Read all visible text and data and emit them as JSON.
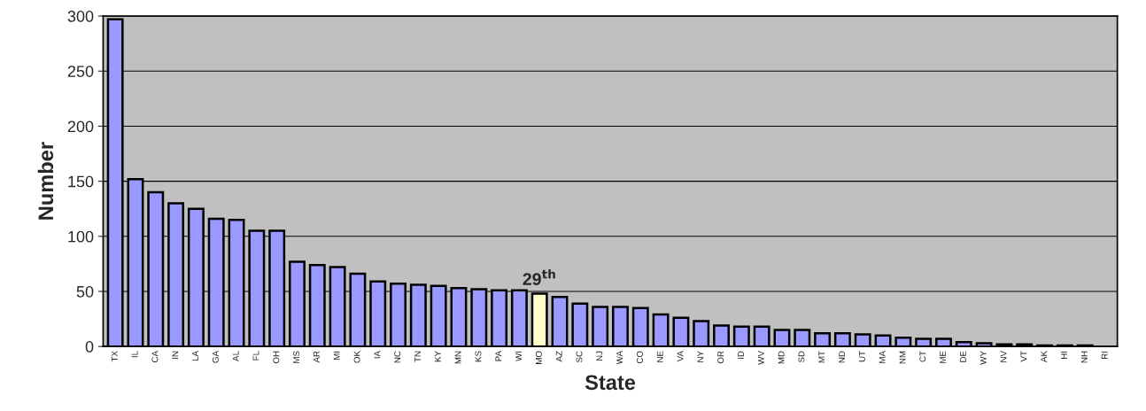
{
  "chart_data": {
    "type": "bar",
    "xlabel": "State",
    "ylabel": "Number",
    "categories": [
      "TX",
      "IL",
      "CA",
      "IN",
      "LA",
      "GA",
      "AL",
      "FL",
      "OH",
      "MS",
      "AR",
      "MI",
      "OK",
      "IA",
      "NC",
      "TN",
      "KY",
      "MN",
      "KS",
      "PA",
      "WI",
      "MO",
      "AZ",
      "SC",
      "NJ",
      "WA",
      "CO",
      "NE",
      "VA",
      "NY",
      "OR",
      "ID",
      "WV",
      "MD",
      "SD",
      "MT",
      "ND",
      "UT",
      "MA",
      "NM",
      "CT",
      "ME",
      "DE",
      "WY",
      "NV",
      "VT",
      "AK",
      "HI",
      "NH",
      "RI"
    ],
    "values": [
      297,
      152,
      140,
      130,
      125,
      116,
      115,
      105,
      105,
      77,
      74,
      72,
      66,
      59,
      57,
      56,
      55,
      53,
      52,
      51,
      51,
      48,
      45,
      39,
      36,
      36,
      35,
      29,
      26,
      23,
      19,
      18,
      18,
      15,
      15,
      12,
      12,
      11,
      10,
      8,
      7,
      7,
      4,
      3,
      2,
      2,
      1,
      1,
      1,
      0
    ],
    "colors": [
      "#9999ff",
      "#9999ff",
      "#9999ff",
      "#9999ff",
      "#9999ff",
      "#9999ff",
      "#9999ff",
      "#9999ff",
      "#9999ff",
      "#9999ff",
      "#9999ff",
      "#9999ff",
      "#9999ff",
      "#9999ff",
      "#9999ff",
      "#9999ff",
      "#9999ff",
      "#9999ff",
      "#9999ff",
      "#9999ff",
      "#9999ff",
      "#ffffcc",
      "#9999ff",
      "#9999ff",
      "#9999ff",
      "#9999ff",
      "#9999ff",
      "#9999ff",
      "#9999ff",
      "#9999ff",
      "#9999ff",
      "#9999ff",
      "#9999ff",
      "#9999ff",
      "#9999ff",
      "#9999ff",
      "#9999ff",
      "#9999ff",
      "#9999ff",
      "#9999ff",
      "#9999ff",
      "#9999ff",
      "#9999ff",
      "#9999ff",
      "#9999ff",
      "#9999ff",
      "#9999ff",
      "#9999ff",
      "#9999ff",
      "#9999ff"
    ],
    "ylim": [
      0,
      300
    ],
    "yticks": [
      0,
      50,
      100,
      150,
      200,
      250,
      300
    ],
    "grid": "y",
    "legend": false,
    "annotations": [
      {
        "text": "29$^{th}$",
        "x": "MO",
        "y": 48
      }
    ]
  }
}
